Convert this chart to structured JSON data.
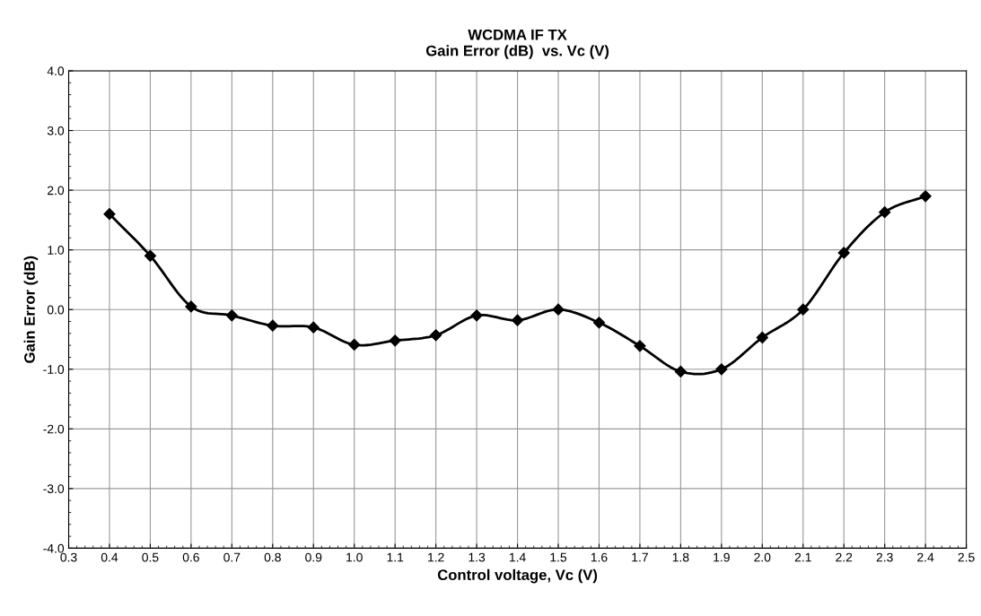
{
  "chart_data": {
    "type": "line",
    "title": "WCDMA IF TX\nGain Error (dB)  vs. Vc (V)",
    "xlabel": "Control voltage, Vc (V)",
    "ylabel": "Gain Error (dB)",
    "x": [
      0.4,
      0.5,
      0.6,
      0.7,
      0.8,
      0.9,
      1.0,
      1.1,
      1.2,
      1.3,
      1.4,
      1.5,
      1.6,
      1.7,
      1.8,
      1.9,
      2.0,
      2.1,
      2.2,
      2.3,
      2.4
    ],
    "series": [
      {
        "color": "#000000",
        "values": [
          1.6,
          0.9,
          0.05,
          -0.1,
          -0.27,
          -0.3,
          -0.59,
          -0.52,
          -0.43,
          -0.1,
          -0.18,
          0.0,
          -0.22,
          -0.61,
          -1.04,
          -1.0,
          -0.47,
          0.0,
          0.95,
          1.63,
          1.9
        ]
      }
    ],
    "xlim": [
      0.3,
      2.5
    ],
    "xticks": [
      0.3,
      0.4,
      0.5,
      0.6,
      0.7,
      0.8,
      0.9,
      {
        "value": 1,
        "label": "1.0"
      },
      1.1,
      1.2,
      1.3,
      1.4,
      1.5,
      1.6,
      1.7,
      1.8,
      1.9,
      {
        "value": 2,
        "label": "2.0"
      },
      2.1,
      2.2,
      2.3,
      2.4,
      2.5
    ],
    "ylim": [
      -4,
      4
    ],
    "yticks": [
      {
        "value": -4,
        "label": "-4.0"
      },
      {
        "value": -3,
        "label": "-3.0"
      },
      {
        "value": -2,
        "label": "-2.0"
      },
      {
        "value": -1,
        "label": "-1.0"
      },
      {
        "value": 0,
        "label": "0.0"
      },
      {
        "value": 1,
        "label": "1.0"
      },
      {
        "value": 2,
        "label": "2.0"
      },
      {
        "value": 3,
        "label": "3.0"
      },
      {
        "value": 4,
        "label": "4.0"
      }
    ],
    "grid": true,
    "marker": "diamond",
    "line_style": "solid"
  }
}
